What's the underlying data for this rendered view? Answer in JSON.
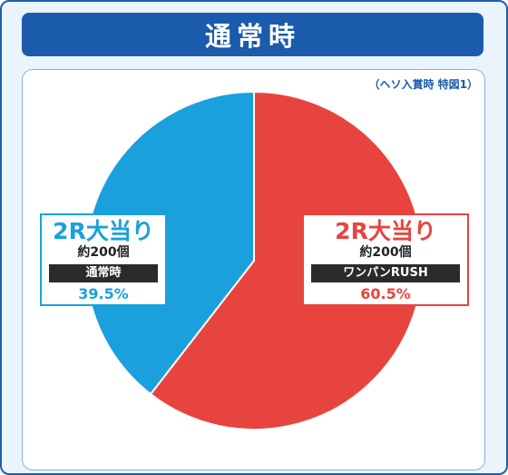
{
  "header": {
    "title": "通常時"
  },
  "note": "（ヘソ入賞時 特図1）",
  "colors": {
    "frame": "#1f5faa",
    "title_bg": "#1a5cab",
    "blue": "#1aa0dc",
    "red": "#e8443f"
  },
  "chart_data": {
    "type": "pie",
    "title": "通常時",
    "slices": [
      {
        "label": "2R大当り",
        "rounds_count": "約200個",
        "mode": "ワンパンRUSH",
        "value": 60.5,
        "value_label": "60.5%",
        "color": "#e8443f"
      },
      {
        "label": "2R大当り",
        "rounds_count": "約200個",
        "mode": "通常時",
        "value": 39.5,
        "value_label": "39.5%",
        "color": "#1aa0dc"
      }
    ]
  }
}
